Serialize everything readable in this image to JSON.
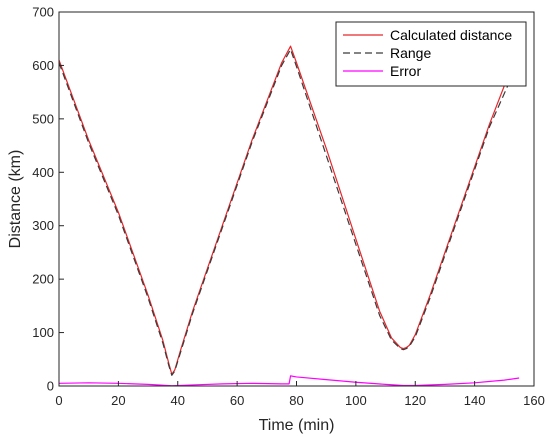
{
  "chart_data": {
    "type": "line",
    "title": "",
    "xlabel": "Time (min)",
    "ylabel": "Distance (km)",
    "xlim": [
      0,
      160
    ],
    "ylim": [
      0,
      700
    ],
    "xticks": [
      0,
      20,
      40,
      60,
      80,
      100,
      120,
      140,
      160
    ],
    "yticks": [
      0,
      100,
      200,
      300,
      400,
      500,
      600,
      700
    ],
    "grid": false,
    "legend_position": "top-right",
    "series": [
      {
        "name": "Calculated distance",
        "color": "#e8262a",
        "style": "solid",
        "x": [
          0,
          10,
          20,
          30,
          35,
          37,
          38,
          39,
          41,
          45,
          55,
          65,
          75,
          78,
          80,
          90,
          100,
          108,
          112,
          115,
          116,
          117,
          118,
          120,
          125,
          135,
          145,
          153
        ],
        "y": [
          610,
          460,
          325,
          170,
          85,
          42,
          22,
          30,
          68,
          140,
          300,
          460,
          605,
          636,
          605,
          445,
          275,
          140,
          90,
          72,
          70,
          72,
          76,
          96,
          170,
          330,
          490,
          605
        ]
      },
      {
        "name": "Range",
        "color": "#3a3a3a",
        "style": "dashed",
        "x": [
          0,
          10,
          20,
          30,
          35,
          37,
          38,
          39,
          41,
          45,
          55,
          65,
          75,
          78,
          80,
          90,
          100,
          108,
          112,
          115,
          116,
          117,
          118,
          120,
          125,
          135,
          145,
          155
        ],
        "y": [
          605,
          455,
          320,
          165,
          80,
          38,
          20,
          28,
          64,
          136,
          296,
          456,
          600,
          630,
          598,
          432,
          265,
          132,
          86,
          70,
          68,
          70,
          74,
          92,
          165,
          325,
          485,
          610
        ]
      },
      {
        "name": "Error",
        "color": "#ff00ff",
        "style": "solid",
        "x": [
          0,
          10,
          20,
          30,
          38,
          45,
          55,
          65,
          75,
          77.5,
          78,
          80,
          90,
          100,
          110,
          116,
          120,
          130,
          140,
          150,
          155
        ],
        "y": [
          5,
          6,
          5,
          3,
          0.5,
          2,
          4,
          5,
          4,
          4,
          19,
          17,
          12,
          7,
          3,
          1,
          1,
          3,
          6,
          11,
          15
        ]
      }
    ]
  }
}
